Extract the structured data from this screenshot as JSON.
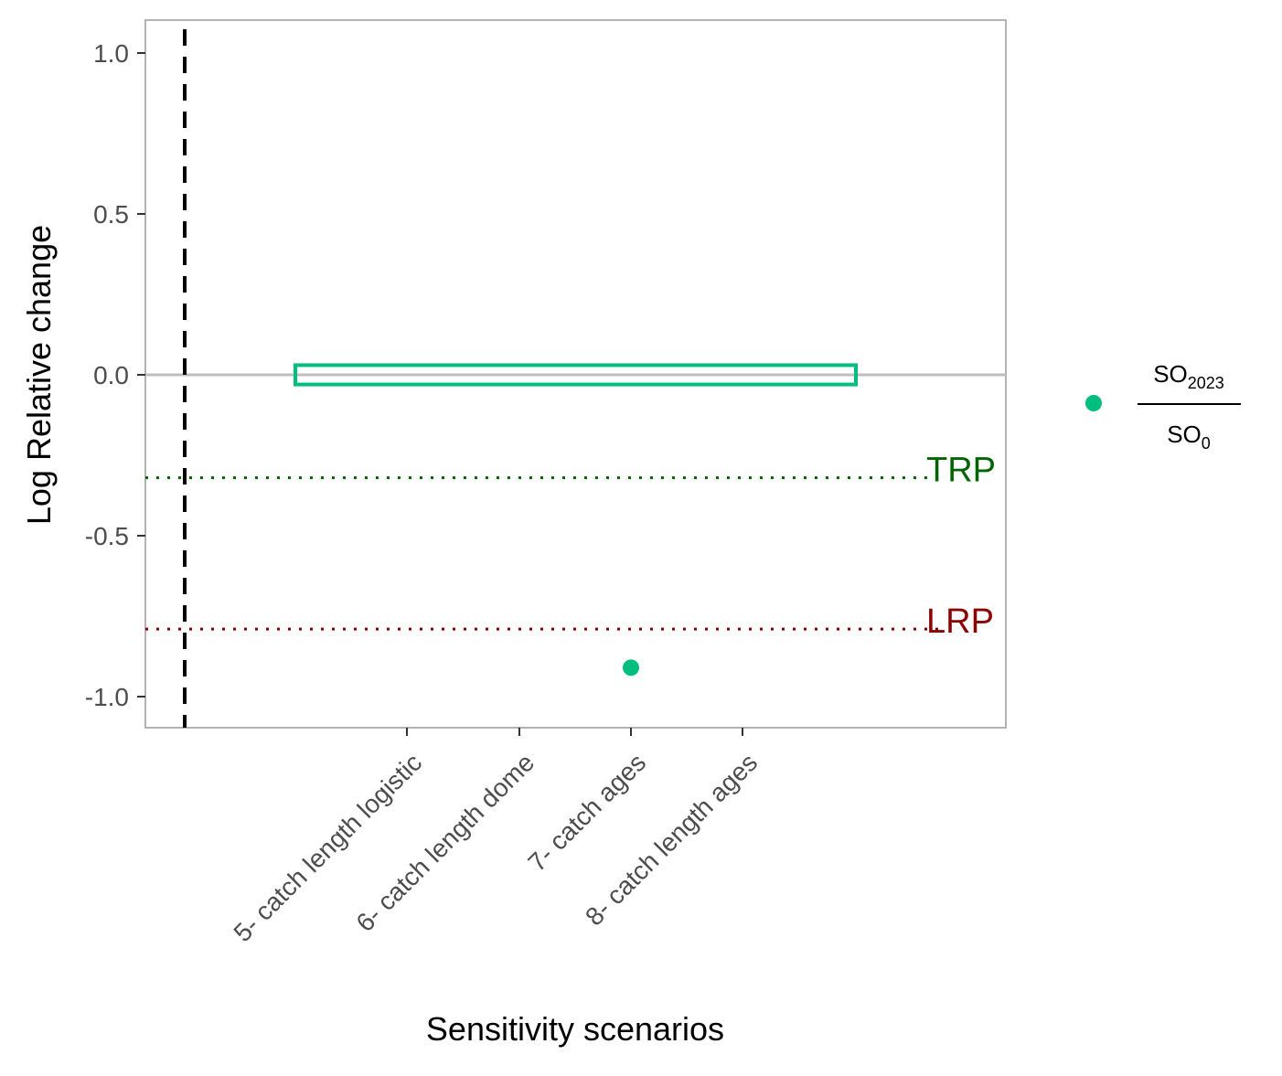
{
  "chart_data": {
    "type": "scatter",
    "title": "",
    "xlabel": "Sensitivity scenarios",
    "ylabel": "Log Relative change",
    "ylim": [
      -1.1,
      1.1
    ],
    "yticks": [
      {
        "value": 1.0,
        "label": "1.0"
      },
      {
        "value": 0.5,
        "label": "0.5"
      },
      {
        "value": 0.0,
        "label": "0.0"
      },
      {
        "value": -0.5,
        "label": "-0.5"
      },
      {
        "value": -1.0,
        "label": "-1.0"
      }
    ],
    "categories": [
      "5- catch length logistic",
      "6- catch length dome",
      "7- catch ages",
      "8- catch length ages"
    ],
    "series": [
      {
        "color": "#00be7d",
        "points": [
          {
            "x": "7- catch ages",
            "y": -0.91
          }
        ]
      }
    ],
    "reference_lines": [
      {
        "label": "TRP",
        "y": -0.32,
        "color": "#006400",
        "style": "dotted"
      },
      {
        "label": "LRP",
        "y": -0.79,
        "color": "#8b0000",
        "style": "dotted"
      }
    ],
    "zero_line": {
      "y": 0.0,
      "color": "#bebebe"
    },
    "highlight_box": {
      "x_from": "5- catch length logistic",
      "x_to": "8- catch length ages",
      "y_min": -0.03,
      "y_max": 0.03,
      "color": "#00be7d"
    },
    "grid": false,
    "legend": {
      "placement": "right",
      "numerator": "SO",
      "numerator_sub": "2023",
      "denominator": "SO",
      "denominator_sub": "0",
      "marker_color": "#00be7d"
    }
  },
  "colors": {
    "panel_border": "#b3b3b3",
    "tick_color": "#333333",
    "tick_text": "#4d4d4d",
    "vertical_dashed": "#000000"
  }
}
